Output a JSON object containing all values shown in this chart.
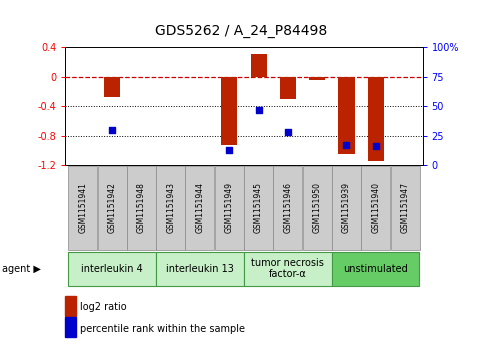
{
  "title": "GDS5262 / A_24_P84498",
  "samples": [
    "GSM1151941",
    "GSM1151942",
    "GSM1151948",
    "GSM1151943",
    "GSM1151944",
    "GSM1151949",
    "GSM1151945",
    "GSM1151946",
    "GSM1151950",
    "GSM1151939",
    "GSM1151940",
    "GSM1151947"
  ],
  "log2_ratio": [
    0.0,
    -0.27,
    0.0,
    0.0,
    0.0,
    -0.93,
    0.31,
    -0.3,
    -0.05,
    -1.05,
    -1.15,
    0.0
  ],
  "percentile_rank": [
    null,
    30,
    null,
    null,
    null,
    13,
    47,
    28,
    null,
    17,
    16,
    null
  ],
  "groups": [
    {
      "label": "interleukin 4",
      "start": 0,
      "end": 2,
      "color": "#c8f0c8"
    },
    {
      "label": "interleukin 13",
      "start": 3,
      "end": 5,
      "color": "#c8f0c8"
    },
    {
      "label": "tumor necrosis\nfactor-α",
      "start": 6,
      "end": 8,
      "color": "#c8f0c8"
    },
    {
      "label": "unstimulated",
      "start": 9,
      "end": 11,
      "color": "#66cc66"
    }
  ],
  "ylim_left": [
    -1.2,
    0.4
  ],
  "ylim_right": [
    0,
    100
  ],
  "bar_color": "#bb2200",
  "dot_color": "#0000cc",
  "zero_line_color": "#cc0000",
  "grid_color": "#000000",
  "agent_label": "agent",
  "legend_items": [
    {
      "color": "#bb2200",
      "label": "log2 ratio"
    },
    {
      "color": "#0000cc",
      "label": "percentile rank within the sample"
    }
  ],
  "sample_box_color": "#cccccc",
  "sample_box_edge": "#888888",
  "group_edge_color": "#449944",
  "title_fontsize": 10,
  "tick_fontsize": 7,
  "sample_fontsize": 5.5,
  "group_fontsize": 7,
  "legend_fontsize": 7
}
